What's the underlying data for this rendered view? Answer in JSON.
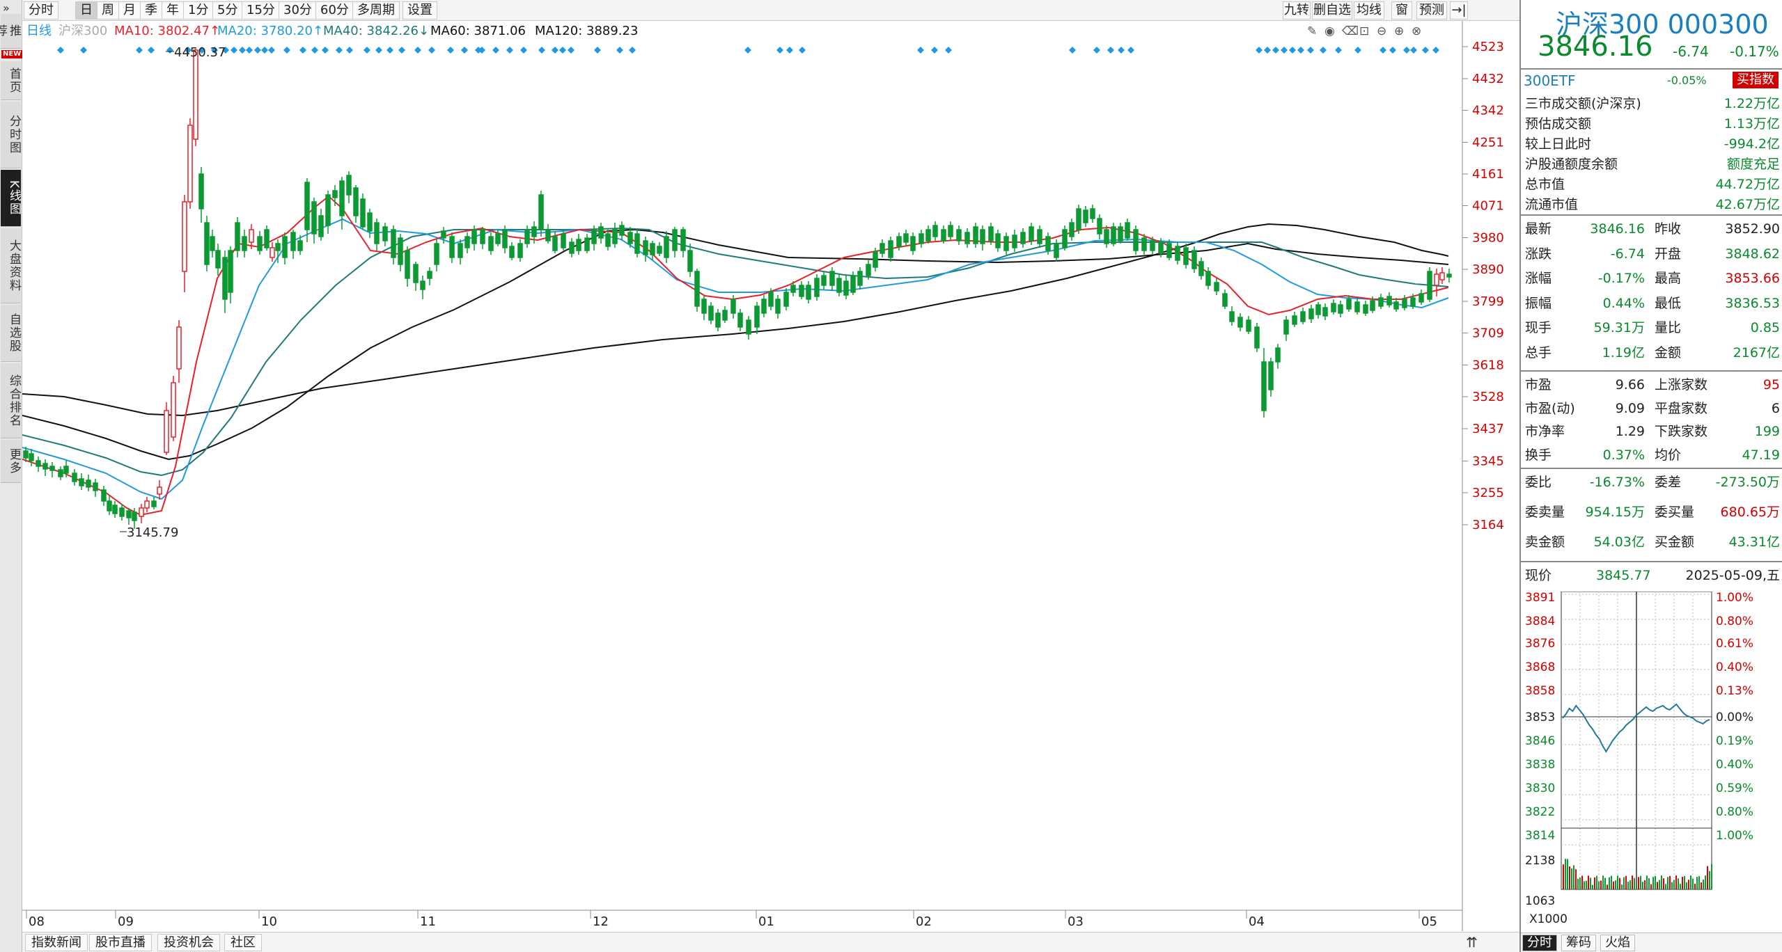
{
  "leftnav": {
    "arrow": "»",
    "items": [
      "推荐",
      "首页",
      "分时图",
      "K线图",
      "大盘资料",
      "自选股",
      "综合排名",
      "更多"
    ],
    "new_badge": "NEW"
  },
  "toolbar": {
    "buttons": [
      "分时",
      "日",
      "周",
      "月",
      "季",
      "年",
      "1分",
      "5分",
      "15分",
      "30分",
      "60分",
      "多周期",
      "设置"
    ],
    "active": "日",
    "right_buttons": [
      "九转",
      "删自选",
      "均线",
      "窗",
      "预测"
    ]
  },
  "chart": {
    "period_label": "日线",
    "index_name": "沪深300",
    "ma": [
      {
        "label": "MA10: 3802.47↑",
        "color": "#e8202a"
      },
      {
        "label": "MA20: 3780.20↑",
        "color": "#1f9ae0"
      },
      {
        "label": "MA40: 3842.26↓",
        "color": "#1f7a7a"
      },
      {
        "label": "MA60: 3871.06",
        "color": "#111111"
      },
      {
        "label": "MA120: 3889.23",
        "color": "#111111"
      }
    ],
    "y_ticks": [
      "4523",
      "4432",
      "4342",
      "4251",
      "4161",
      "4071",
      "3980",
      "3890",
      "3799",
      "3709",
      "3618",
      "3528",
      "3437",
      "3345",
      "3255",
      "3164"
    ],
    "x_ticks": [
      "08",
      "09",
      "10",
      "11",
      "12",
      "01",
      "02",
      "03",
      "04",
      "05"
    ],
    "high_label": "4450.37",
    "low_label": "3145.79"
  },
  "bottom_tabs": [
    "指数新闻",
    "股市直播",
    "投资机会",
    "社区"
  ],
  "bottom_up": "⇈",
  "panel": {
    "title": "沪深300 000300",
    "price": "3846.16",
    "change": "-6.74",
    "change_pct": "-0.17%",
    "etf": "300ETF",
    "etf_pct": "-0.05%",
    "buy_btn": "买指数",
    "info": [
      {
        "k": "三市成交额(沪深京)",
        "v": "1.22万亿"
      },
      {
        "k": "预估成交额",
        "v": "1.13万亿"
      },
      {
        "k": "较上日此时",
        "v": "-994.2亿"
      },
      {
        "k": "沪股通额度余额",
        "v": "额度充足"
      },
      {
        "k": "总市值",
        "v": "44.72万亿"
      },
      {
        "k": "流通市值",
        "v": "42.67万亿"
      }
    ],
    "quote": [
      {
        "k1": "最新",
        "v1": "3846.16",
        "c1": "g",
        "k2": "昨收",
        "v2": "3852.90",
        "c2": "b"
      },
      {
        "k1": "涨跌",
        "v1": "-6.74",
        "c1": "g",
        "k2": "开盘",
        "v2": "3848.62",
        "c2": "g"
      },
      {
        "k1": "涨幅",
        "v1": "-0.17%",
        "c1": "g",
        "k2": "最高",
        "v2": "3853.66",
        "c2": "r"
      },
      {
        "k1": "振幅",
        "v1": "0.44%",
        "c1": "g",
        "k2": "最低",
        "v2": "3836.53",
        "c2": "g"
      },
      {
        "k1": "现手",
        "v1": "59.31万",
        "c1": "g",
        "k2": "量比",
        "v2": "0.85",
        "c2": "g"
      },
      {
        "k1": "总手",
        "v1": "1.19亿",
        "c1": "g",
        "k2": "金额",
        "v2": "2167亿",
        "c2": "g"
      }
    ],
    "stats": [
      {
        "k1": "市盈",
        "v1": "9.66",
        "c1": "b",
        "k2": "上涨家数",
        "v2": "95",
        "c2": "r"
      },
      {
        "k1": "市盈(动)",
        "v1": "9.09",
        "c1": "b",
        "k2": "平盘家数",
        "v2": "6",
        "c2": "b"
      },
      {
        "k1": "市净率",
        "v1": "1.29",
        "c1": "b",
        "k2": "下跌家数",
        "v2": "199",
        "c2": "g"
      },
      {
        "k1": "换手",
        "v1": "0.37%",
        "c1": "g",
        "k2": "均价",
        "v2": "47.19",
        "c2": "g"
      }
    ],
    "order": [
      {
        "k1": "委比",
        "v1": "-16.73%",
        "c1": "g",
        "k2": "委差",
        "v2": "-273.50万",
        "c2": "g"
      },
      {
        "k1": "委卖量",
        "v1": "954.15万",
        "c1": "g",
        "k2": "委买量",
        "v2": "680.65万",
        "c2": "r"
      },
      {
        "k1": "卖金额",
        "v1": "54.03亿",
        "c1": "g",
        "k2": "买金额",
        "v2": "43.31亿",
        "c2": "g"
      }
    ],
    "now": {
      "k": "现价",
      "v": "3845.77",
      "date": "2025-05-09,五"
    },
    "mini_left": [
      "3891",
      "3884",
      "3876",
      "3868",
      "3858",
      "3853",
      "3846",
      "3838",
      "3830",
      "3822",
      "3814"
    ],
    "mini_right": [
      "1.00%",
      "0.80%",
      "0.61%",
      "0.40%",
      "0.13%",
      "0.00%",
      "0.19%",
      "0.40%",
      "0.59%",
      "0.80%",
      "1.00%"
    ],
    "vol_labels": [
      "2138",
      "1063"
    ],
    "multiplier": "X1000",
    "tabs": [
      "分时",
      "筹码",
      "火焰"
    ]
  }
}
